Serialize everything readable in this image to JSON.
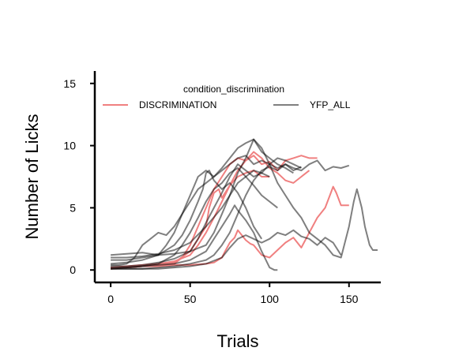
{
  "chart_data": {
    "type": "line",
    "title": "",
    "xlabel": "Trials",
    "ylabel": "Number of Licks",
    "xlim": [
      -10,
      170
    ],
    "ylim": [
      -1,
      16
    ],
    "xticks": [
      0,
      50,
      100,
      150
    ],
    "yticks": [
      0,
      5,
      10,
      15
    ],
    "legend": {
      "title": "condition_discrimination",
      "placement": "top",
      "entries": [
        {
          "label": "DISCRIMINATION",
          "color": "#f08080"
        },
        {
          "label": "YFP_ALL",
          "color": "#7f7f7f"
        }
      ]
    },
    "groups": {
      "DISCRIMINATION": {
        "color": "#f08080",
        "opacity": 1.0
      },
      "YFP_ALL": {
        "color": "#000000",
        "opacity": 0.5
      }
    },
    "series": [
      {
        "group": "DISCRIMINATION",
        "x": [
          0,
          10,
          20,
          30,
          40,
          45,
          50,
          55,
          60,
          65,
          70,
          75,
          80,
          85,
          90,
          95,
          100,
          105,
          110,
          115,
          120,
          125,
          130
        ],
        "y": [
          0.2,
          0.2,
          0.3,
          0.4,
          0.5,
          1.0,
          2.0,
          3.5,
          5.0,
          6.5,
          7.5,
          8.5,
          9.0,
          8.8,
          9.2,
          8.5,
          8.7,
          8.0,
          8.8,
          9.0,
          9.2,
          9.0,
          9.0
        ]
      },
      {
        "group": "DISCRIMINATION",
        "x": [
          0,
          10,
          20,
          30,
          40,
          50,
          55,
          60,
          65,
          70,
          75,
          80,
          85,
          90,
          95,
          100,
          105,
          110,
          115,
          120,
          125
        ],
        "y": [
          0.2,
          0.3,
          0.4,
          0.5,
          0.7,
          1.2,
          2.0,
          3.0,
          4.2,
          5.5,
          6.8,
          8.0,
          8.8,
          9.5,
          9.0,
          8.2,
          7.8,
          7.2,
          7.0,
          7.5,
          8.0
        ]
      },
      {
        "group": "DISCRIMINATION",
        "x": [
          0,
          10,
          20,
          30,
          40,
          50,
          60,
          65,
          70,
          72,
          75,
          78,
          80,
          85,
          88,
          90,
          95,
          100,
          105,
          110,
          115,
          120,
          125,
          130,
          135,
          138,
          140,
          142,
          145,
          150
        ],
        "y": [
          0.2,
          0.2,
          0.3,
          0.3,
          0.4,
          0.4,
          0.5,
          0.6,
          1.0,
          1.5,
          2.2,
          2.6,
          3.2,
          2.4,
          2.1,
          2.0,
          1.2,
          1.0,
          1.6,
          2.2,
          2.6,
          1.8,
          3.0,
          4.2,
          5.0,
          6.0,
          6.7,
          6.2,
          5.2,
          5.2
        ]
      },
      {
        "group": "DISCRIMINATION",
        "x": [
          0,
          10,
          20,
          30,
          40,
          50,
          60,
          62,
          65,
          68,
          70,
          75,
          80,
          85,
          90,
          95,
          100
        ],
        "y": [
          0.1,
          0.2,
          0.3,
          0.4,
          0.6,
          1.5,
          3.5,
          5.0,
          6.2,
          6.5,
          5.8,
          6.8,
          7.5,
          7.8,
          8.0,
          7.5,
          7.5
        ]
      },
      {
        "group": "YFP_ALL",
        "x": [
          0,
          5,
          10,
          15,
          20,
          25,
          30,
          35,
          40,
          45,
          50,
          55,
          60,
          65,
          70,
          75,
          80,
          85,
          90,
          95,
          100,
          105,
          110,
          115,
          120
        ],
        "y": [
          0.4,
          0.4,
          0.5,
          1.0,
          2.0,
          2.5,
          3.0,
          2.8,
          3.5,
          4.5,
          5.5,
          6.5,
          7.0,
          7.5,
          8.0,
          8.5,
          9.0,
          9.2,
          8.5,
          8.8,
          8.5,
          8.2,
          8.5,
          8.0,
          8.3
        ]
      },
      {
        "group": "YFP_ALL",
        "x": [
          0,
          10,
          20,
          30,
          40,
          45,
          50,
          55,
          58,
          60,
          62,
          65,
          70,
          75,
          80,
          85,
          90,
          95
        ],
        "y": [
          0.5,
          0.6,
          0.8,
          1.2,
          2.0,
          2.8,
          4.0,
          5.5,
          6.5,
          7.8,
          8.0,
          7.2,
          6.5,
          7.0,
          6.2,
          5.0,
          3.5,
          2.5
        ]
      },
      {
        "group": "YFP_ALL",
        "x": [
          0,
          10,
          20,
          30,
          40,
          50,
          60,
          65,
          70,
          75,
          80,
          85,
          90,
          95,
          100,
          105,
          110,
          115,
          120,
          125,
          130,
          135,
          140,
          145,
          150
        ],
        "y": [
          0.1,
          0.1,
          0.1,
          0.2,
          0.3,
          0.5,
          0.8,
          1.2,
          2.0,
          3.0,
          4.5,
          6.0,
          7.2,
          8.0,
          8.3,
          8.0,
          8.5,
          8.2,
          8.0,
          8.5,
          8.8,
          8.0,
          8.3,
          8.2,
          8.4
        ]
      },
      {
        "group": "YFP_ALL",
        "x": [
          0,
          10,
          20,
          30,
          40,
          50,
          60,
          65,
          70,
          75,
          80,
          85,
          90,
          95,
          100,
          105,
          110,
          115,
          120,
          125,
          130,
          135,
          140,
          145,
          150,
          153,
          155,
          158,
          160,
          163,
          165,
          168
        ],
        "y": [
          1.2,
          1.3,
          1.4,
          1.2,
          1.3,
          1.5,
          2.0,
          3.0,
          4.5,
          6.0,
          7.8,
          9.0,
          10.5,
          9.8,
          8.5,
          7.0,
          6.0,
          5.0,
          4.2,
          3.0,
          2.5,
          2.0,
          1.2,
          1.0,
          3.5,
          5.5,
          6.5,
          5.0,
          3.5,
          2.0,
          1.6,
          1.6
        ]
      },
      {
        "group": "YFP_ALL",
        "x": [
          0,
          10,
          20,
          30,
          40,
          50,
          60,
          70,
          75,
          80,
          85,
          90,
          95,
          100,
          105,
          110,
          115,
          120,
          125,
          130,
          135,
          140,
          145
        ],
        "y": [
          0.1,
          0.1,
          0.1,
          0.1,
          0.2,
          0.3,
          0.5,
          1.0,
          1.8,
          2.5,
          2.8,
          2.5,
          2.2,
          2.5,
          3.0,
          2.8,
          3.2,
          2.7,
          2.5,
          2.0,
          2.6,
          2.2,
          1.2
        ]
      },
      {
        "group": "YFP_ALL",
        "x": [
          0,
          10,
          20,
          30,
          35,
          40,
          45,
          50,
          55,
          60,
          65,
          70,
          75,
          80,
          85,
          90,
          95,
          100,
          105,
          110,
          115
        ],
        "y": [
          0.8,
          0.8,
          1.0,
          1.2,
          2.0,
          3.0,
          4.5,
          6.0,
          7.5,
          8.0,
          7.5,
          8.2,
          9.0,
          9.8,
          10.2,
          10.5,
          9.5,
          9.0,
          8.5,
          8.2,
          7.8
        ]
      },
      {
        "group": "YFP_ALL",
        "x": [
          0,
          10,
          20,
          30,
          40,
          45,
          50,
          55,
          60,
          65,
          70,
          75,
          80,
          85,
          90,
          95,
          100,
          105
        ],
        "y": [
          0.1,
          0.2,
          0.3,
          0.5,
          1.2,
          2.0,
          3.0,
          4.2,
          5.5,
          6.5,
          7.0,
          7.8,
          8.2,
          7.5,
          6.8,
          6.0,
          5.5,
          5.0
        ]
      },
      {
        "group": "YFP_ALL",
        "x": [
          0,
          10,
          20,
          30,
          40,
          50,
          55,
          60,
          65,
          70,
          75,
          80,
          85,
          90,
          95,
          100,
          105,
          110,
          115,
          120
        ],
        "y": [
          0.3,
          0.3,
          0.4,
          0.6,
          0.9,
          1.5,
          2.5,
          3.8,
          5.0,
          6.2,
          7.5,
          8.5,
          8.0,
          7.5,
          7.8,
          8.5,
          9.0,
          8.8,
          8.5,
          8.2
        ]
      },
      {
        "group": "YFP_ALL",
        "x": [
          0,
          10,
          20,
          30,
          40,
          50,
          60,
          65,
          70,
          75,
          78,
          80,
          85,
          90,
          95,
          100,
          103,
          105
        ],
        "y": [
          0.2,
          0.2,
          0.3,
          0.4,
          0.5,
          0.8,
          1.5,
          2.5,
          3.5,
          4.5,
          5.2,
          4.8,
          4.0,
          3.0,
          1.5,
          0.2,
          0.0,
          0.0
        ]
      },
      {
        "group": "YFP_ALL",
        "x": [
          0,
          10,
          20,
          30,
          40,
          50,
          60,
          70,
          75,
          80,
          85,
          90,
          95,
          100
        ],
        "y": [
          1.0,
          1.0,
          1.1,
          1.3,
          1.6,
          2.2,
          3.5,
          5.0,
          6.0,
          7.0,
          7.5,
          8.0,
          7.8,
          7.5
        ]
      }
    ]
  }
}
